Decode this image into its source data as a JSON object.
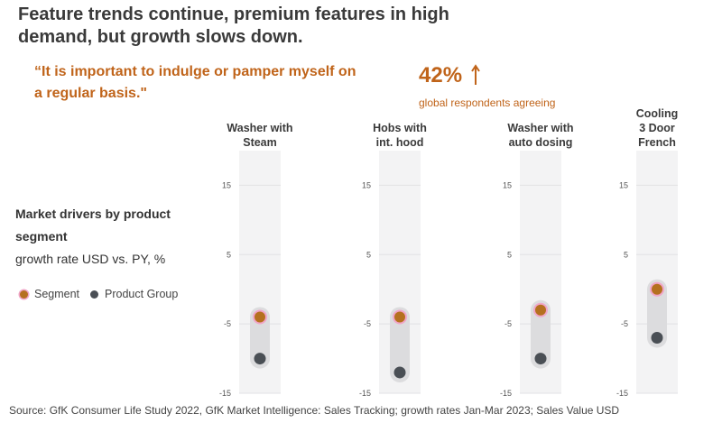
{
  "header": {
    "title_line1": "Feature trends continue, premium features in high",
    "title_line2": "demand, but growth slows down."
  },
  "quote": {
    "text_line1": "“It is important to indulge or pamper myself on",
    "text_line2": "a regular basis.\"",
    "stat_value": "42%",
    "stat_caption": "global respondents agreeing",
    "stat_arrow_icon": "arrow-up-icon"
  },
  "drivers": {
    "heading_line1": "Market drivers by product",
    "heading_line2": "segment",
    "subheading": "growth rate USD vs. PY, %"
  },
  "legend": {
    "segment_label": "Segment",
    "product_group_label": "Product Group"
  },
  "source": "Source: GfK Consumer Life Study 2022, GfK Market Intelligence: Sales Tracking; growth rates Jan-Mar 2023; Sales Value USD",
  "colors": {
    "segment": "#b5701f",
    "segment_ring": "#f0a6c8",
    "product_group": "#4a4f55",
    "accent": "#c0641a",
    "panel_bg": "#f3f3f4",
    "range_bar": "#dcdcde"
  },
  "chart_data": {
    "type": "scatter",
    "title": "Market drivers by product segment",
    "ylabel": "growth rate USD vs. PY, %",
    "ylim": [
      -15,
      20
    ],
    "yticks": [
      15,
      5,
      -5,
      -15
    ],
    "tick_labels": [
      "15",
      "5",
      "-5",
      "-15"
    ],
    "grid": true,
    "panels": [
      {
        "label_lines": [
          "Washer with",
          "Steam"
        ],
        "segment": -4,
        "product_group": -10
      },
      {
        "label_lines": [
          "Hobs with",
          "int. hood"
        ],
        "segment": -4,
        "product_group": -12
      },
      {
        "label_lines": [
          "Washer with",
          "auto dosing"
        ],
        "segment": -3,
        "product_group": -10
      },
      {
        "label_lines": [
          "Cooling",
          "3 Door",
          "French"
        ],
        "segment": 0,
        "product_group": -7
      }
    ],
    "series": [
      {
        "name": "Segment",
        "values": [
          -4,
          -4,
          -3,
          0
        ]
      },
      {
        "name": "Product Group",
        "values": [
          -10,
          -12,
          -10,
          -7
        ]
      }
    ]
  }
}
